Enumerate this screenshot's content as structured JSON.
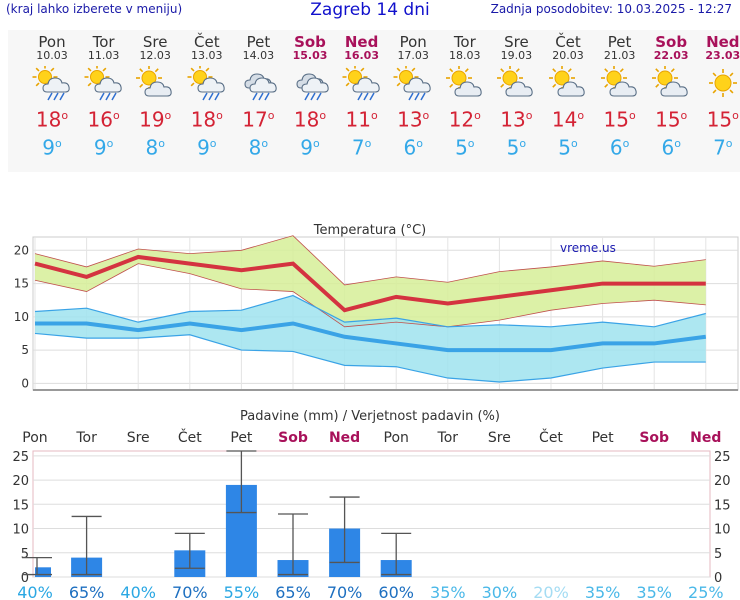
{
  "header": {
    "left_note": "(kraj lahko izberete v meniju)",
    "title": "Zagreb 14 dni",
    "updated": "Zadnja posodobitev: 10.03.2025 - 12:27"
  },
  "forecast": [
    {
      "day": "Pon",
      "date": "10.03",
      "weekend": false,
      "icon": "sun-cloud-rain-icon",
      "max": "18",
      "min": "9"
    },
    {
      "day": "Tor",
      "date": "11.03",
      "weekend": false,
      "icon": "sun-cloud-rain-icon",
      "max": "16",
      "min": "9"
    },
    {
      "day": "Sre",
      "date": "12.03",
      "weekend": false,
      "icon": "sun-cloud-icon",
      "max": "19",
      "min": "8"
    },
    {
      "day": "Čet",
      "date": "13.03",
      "weekend": false,
      "icon": "sun-cloud-rain-icon",
      "max": "18",
      "min": "9"
    },
    {
      "day": "Pet",
      "date": "14.03",
      "weekend": false,
      "icon": "cloud-rain-icon",
      "max": "17",
      "min": "8"
    },
    {
      "day": "Sob",
      "date": "15.03",
      "weekend": true,
      "icon": "cloud-rain-icon",
      "max": "18",
      "min": "9"
    },
    {
      "day": "Ned",
      "date": "16.03",
      "weekend": true,
      "icon": "sun-cloud-rain-icon",
      "max": "11",
      "min": "7"
    },
    {
      "day": "Pon",
      "date": "17.03",
      "weekend": false,
      "icon": "sun-cloud-rain-icon",
      "max": "13",
      "min": "6"
    },
    {
      "day": "Tor",
      "date": "18.03",
      "weekend": false,
      "icon": "sun-cloud-icon",
      "max": "12",
      "min": "5"
    },
    {
      "day": "Sre",
      "date": "19.03",
      "weekend": false,
      "icon": "sun-cloud-icon",
      "max": "13",
      "min": "5"
    },
    {
      "day": "Čet",
      "date": "20.03",
      "weekend": false,
      "icon": "sun-cloud-icon",
      "max": "14",
      "min": "5"
    },
    {
      "day": "Pet",
      "date": "21.03",
      "weekend": false,
      "icon": "sun-cloud-icon",
      "max": "15",
      "min": "6"
    },
    {
      "day": "Sob",
      "date": "22.03",
      "weekend": true,
      "icon": "sun-cloud-icon",
      "max": "15",
      "min": "6"
    },
    {
      "day": "Ned",
      "date": "23.03",
      "weekend": true,
      "icon": "sun-icon",
      "max": "15",
      "min": "7"
    }
  ],
  "chart_data": [
    {
      "type": "line",
      "title": "Temperatura (°C)",
      "watermark": "vreme.us",
      "x": [
        "Pon",
        "Tor",
        "Sre",
        "Čet",
        "Pet",
        "Sob",
        "Ned",
        "Pon",
        "Tor",
        "Sre",
        "Čet",
        "Pet",
        "Sob",
        "Ned"
      ],
      "ylim": [
        -1,
        22
      ],
      "yticks": [
        0,
        5,
        10,
        15,
        20
      ],
      "grid": true,
      "series": [
        {
          "role": "max",
          "values": [
            18,
            16,
            19,
            18,
            17,
            18,
            11,
            13,
            12,
            13,
            14,
            15,
            15,
            15
          ],
          "color": "#d43340"
        },
        {
          "role": "max_band_upper",
          "values": [
            19.5,
            17.5,
            20.2,
            19.5,
            20,
            22.2,
            14.8,
            16,
            15.2,
            16.8,
            17.5,
            18.4,
            17.6,
            18.6
          ],
          "color": "#d6ee98"
        },
        {
          "role": "max_band_lower",
          "values": [
            15.5,
            13.8,
            18,
            16.5,
            14.2,
            13.8,
            8.5,
            9.2,
            8.5,
            9.5,
            11,
            12,
            12.5,
            11.8
          ],
          "color": "#d6ee98"
        },
        {
          "role": "min",
          "values": [
            9,
            9,
            8,
            9,
            8,
            9,
            7,
            6,
            5,
            5,
            5,
            6,
            6,
            7
          ],
          "color": "#3aa3e6"
        },
        {
          "role": "min_band_upper",
          "values": [
            10.8,
            11.3,
            9.2,
            10.8,
            11,
            13.2,
            9.2,
            9.8,
            8.5,
            8.8,
            8.5,
            9.2,
            8.5,
            10.5
          ],
          "color": "#9fe3ef"
        },
        {
          "role": "min_band_lower",
          "values": [
            7.5,
            6.8,
            6.8,
            7.3,
            5,
            4.8,
            2.7,
            2.5,
            0.8,
            0.2,
            0.8,
            2.3,
            3.2,
            3.2
          ],
          "color": "#9fe3ef"
        }
      ]
    },
    {
      "type": "bar",
      "title": "Padavine (mm) / Verjetnost padavin (%)",
      "categories": [
        "Pon",
        "Tor",
        "Sre",
        "Čet",
        "Pet",
        "Sob",
        "Ned",
        "Pon",
        "Tor",
        "Sre",
        "Čet",
        "Pet",
        "Sob",
        "Ned"
      ],
      "weekend": [
        false,
        false,
        false,
        false,
        false,
        true,
        true,
        false,
        false,
        false,
        false,
        false,
        true,
        true
      ],
      "values": [
        2,
        4,
        0,
        5.5,
        19,
        3.5,
        10,
        3.5,
        0,
        0,
        0,
        0,
        0,
        0
      ],
      "error_high": [
        4,
        12.5,
        null,
        9,
        26,
        13,
        16.5,
        9,
        null,
        null,
        null,
        null,
        null,
        null
      ],
      "error_low": [
        0.5,
        0.5,
        null,
        1.8,
        13.3,
        0.5,
        3,
        0.5,
        null,
        null,
        null,
        null,
        null,
        null
      ],
      "probability": [
        "40%",
        "65%",
        "40%",
        "70%",
        "55%",
        "65%",
        "70%",
        "60%",
        "35%",
        "30%",
        "20%",
        "35%",
        "35%",
        "25%"
      ],
      "probability_colors": [
        "#2aa7e3",
        "#1d6fc0",
        "#2aa7e3",
        "#1d6fc0",
        "#2aa7e3",
        "#1d6fc0",
        "#1d6fc0",
        "#1d6fc0",
        "#4ab8e8",
        "#4ab8e8",
        "#a4dcf3",
        "#4ab8e8",
        "#4ab8e8",
        "#4ab8e8"
      ],
      "ylim": [
        0,
        26
      ],
      "yticks": [
        0,
        5,
        10,
        15,
        20,
        25
      ],
      "bar_color": "#2e86e6"
    }
  ]
}
